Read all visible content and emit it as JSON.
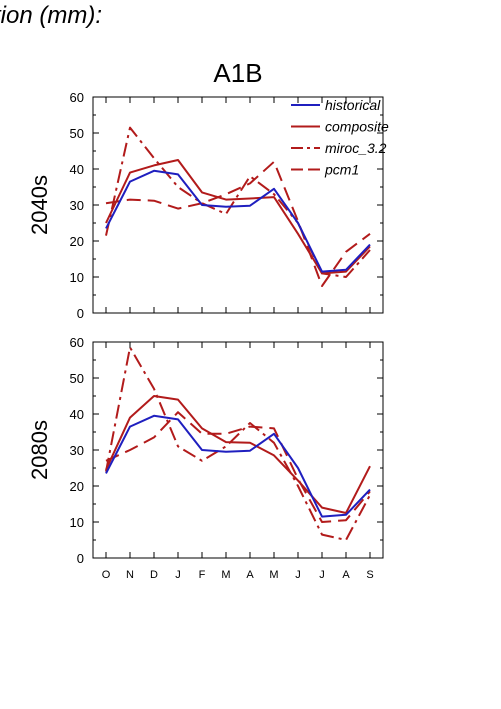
{
  "page": {
    "title": "tion (mm):"
  },
  "colors": {
    "historical": "#1f1fbf",
    "model": "#b21b1b",
    "axis": "#000000",
    "background": "#ffffff"
  },
  "chart_data": [
    {
      "type": "line",
      "title": "A1B",
      "ylabel": "2040s",
      "xlabel": "",
      "categories": [
        "O",
        "N",
        "D",
        "J",
        "F",
        "M",
        "A",
        "M",
        "J",
        "J",
        "A",
        "S"
      ],
      "ylim": [
        0,
        60
      ],
      "yticks": [
        0,
        10,
        20,
        30,
        40,
        50,
        60
      ],
      "grid": false,
      "legend": {
        "position": "top-right",
        "entries": [
          "historical",
          "composite",
          "miroc_3.2",
          "pcm1"
        ]
      },
      "series": [
        {
          "name": "historical",
          "style": "solid",
          "color": "#1f1fbf",
          "values": [
            23.5,
            36.5,
            39.5,
            38.5,
            30,
            29.5,
            29.8,
            34.5,
            25,
            11.5,
            12,
            19
          ]
        },
        {
          "name": "composite",
          "style": "solid",
          "color": "#b21b1b",
          "values": [
            25,
            39,
            41,
            42.5,
            33.5,
            31.5,
            31.8,
            32.2,
            22,
            11,
            11.5,
            18.5
          ]
        },
        {
          "name": "miroc_3.2",
          "style": "dashdot",
          "color": "#b21b1b",
          "values": [
            21.5,
            51.5,
            43,
            35,
            30.5,
            27.5,
            38,
            33,
            25,
            11,
            10,
            17.5
          ]
        },
        {
          "name": "pcm1",
          "style": "dashed",
          "color": "#b21b1b",
          "values": [
            30.5,
            31.5,
            31.2,
            29,
            30.5,
            33,
            36,
            42,
            25.5,
            7.5,
            17,
            22
          ]
        }
      ]
    },
    {
      "type": "line",
      "title": "",
      "ylabel": "2080s",
      "xlabel": "",
      "categories": [
        "O",
        "N",
        "D",
        "J",
        "F",
        "M",
        "A",
        "M",
        "J",
        "J",
        "A",
        "S"
      ],
      "ylim": [
        0,
        60
      ],
      "yticks": [
        0,
        10,
        20,
        30,
        40,
        50,
        60
      ],
      "grid": false,
      "series": [
        {
          "name": "historical",
          "style": "solid",
          "color": "#1f1fbf",
          "values": [
            23.5,
            36.5,
            39.5,
            38.5,
            30,
            29.5,
            29.8,
            34.5,
            25,
            11.5,
            12,
            19
          ]
        },
        {
          "name": "composite",
          "style": "solid",
          "color": "#b21b1b",
          "values": [
            24.5,
            39,
            45,
            44,
            36,
            32.2,
            32,
            28.5,
            21.5,
            14,
            12.5,
            25.5
          ]
        },
        {
          "name": "miroc_3.2",
          "style": "dashdot",
          "color": "#b21b1b",
          "values": [
            24,
            58.5,
            47,
            31,
            27,
            31,
            37.5,
            32,
            20,
            6.5,
            5,
            17.5
          ]
        },
        {
          "name": "pcm1",
          "style": "dashed",
          "color": "#b21b1b",
          "values": [
            27,
            30,
            33.5,
            40.5,
            34.5,
            34.5,
            36.5,
            36,
            22,
            10,
            10.5,
            18.5
          ]
        }
      ]
    }
  ]
}
